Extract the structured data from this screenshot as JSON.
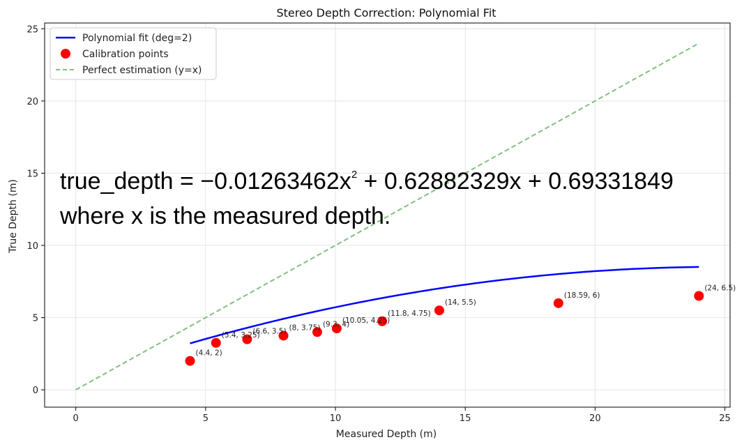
{
  "chart_data": {
    "type": "line",
    "title": "Stereo Depth Correction: Polynomial Fit",
    "xlabel": "Measured Depth (m)",
    "ylabel": "True Depth (m)",
    "xlim": [
      -1.2,
      25.2
    ],
    "ylim": [
      -1.2,
      25.4
    ],
    "xticks": [
      0,
      5,
      10,
      15,
      20,
      25
    ],
    "yticks": [
      0,
      5,
      10,
      15,
      20,
      25
    ],
    "grid": true,
    "legend_position": "top-left",
    "series": [
      {
        "name": "Polynomial fit (deg=2)",
        "kind": "line",
        "color": "#0000ff",
        "coefficients": [
          -0.01263462,
          0.62882329,
          0.69331849
        ],
        "x_range": [
          4.4,
          24
        ]
      },
      {
        "name": "Calibration points",
        "kind": "scatter",
        "color": "#ff0000",
        "points": [
          {
            "x": 4.4,
            "y": 2,
            "label": "(4.4, 2)"
          },
          {
            "x": 5.4,
            "y": 3.25,
            "label": "(5.4, 3.25)"
          },
          {
            "x": 6.6,
            "y": 3.5,
            "label": "(6.6, 3.5)"
          },
          {
            "x": 8,
            "y": 3.75,
            "label": "(8, 3.75)"
          },
          {
            "x": 9.3,
            "y": 4,
            "label": "(9.3, 4)"
          },
          {
            "x": 10.05,
            "y": 4.25,
            "label": "(10.05, 4.25)"
          },
          {
            "x": 11.8,
            "y": 4.75,
            "label": "(11.8, 4.75)"
          },
          {
            "x": 14,
            "y": 5.5,
            "label": "(14, 5.5)"
          },
          {
            "x": 18.59,
            "y": 6,
            "label": "(18.59, 6)"
          },
          {
            "x": 24,
            "y": 6.5,
            "label": "(24, 6.5)"
          }
        ]
      },
      {
        "name": "Perfect estimation (y=x)",
        "kind": "dashed-line",
        "color": "#80c080",
        "x": [
          0,
          24
        ],
        "y": [
          0,
          24
        ]
      }
    ]
  },
  "annotation": {
    "line1_before": "true_depth = −0.01263462x",
    "line1_exp": "2",
    "line1_after": " + 0.62882329x + 0.69331849",
    "line2": "where x is the measured depth."
  }
}
